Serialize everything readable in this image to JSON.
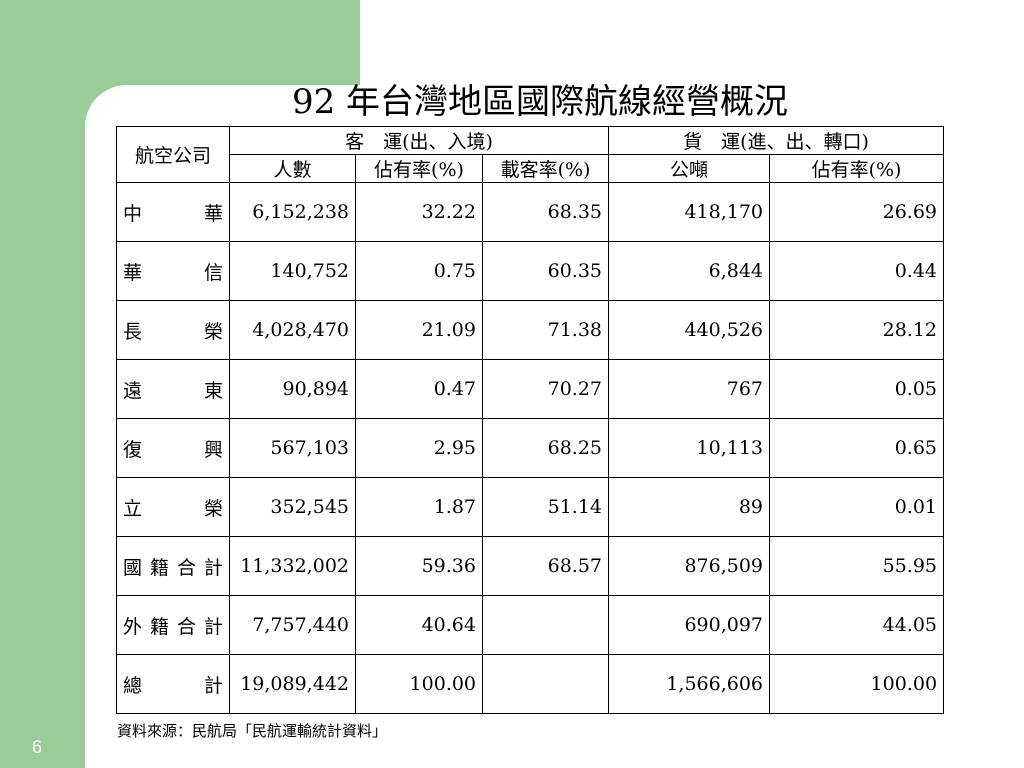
{
  "title": "92 年台灣地區國際航線經營概況",
  "table": {
    "airline_header": "航空公司",
    "passenger_group": "客　運(出、入境)",
    "cargo_group": "貨　運(進、出、轉口)",
    "subheaders": [
      "人數",
      "佔有率(%)",
      "載客率(%)",
      "公噸",
      "佔有率(%)"
    ],
    "rows": [
      {
        "airline": "中　華",
        "passengers": "6,152,238",
        "pax_share": "32.22",
        "load_factor": "68.35",
        "tons": "418,170",
        "cargo_share": "26.69"
      },
      {
        "airline": "華　信",
        "passengers": "140,752",
        "pax_share": "0.75",
        "load_factor": "60.35",
        "tons": "6,844",
        "cargo_share": "0.44"
      },
      {
        "airline": "長　榮",
        "passengers": "4,028,470",
        "pax_share": "21.09",
        "load_factor": "71.38",
        "tons": "440,526",
        "cargo_share": "28.12"
      },
      {
        "airline": "遠　東",
        "passengers": "90,894",
        "pax_share": "0.47",
        "load_factor": "70.27",
        "tons": "767",
        "cargo_share": "0.05"
      },
      {
        "airline": "復　興",
        "passengers": "567,103",
        "pax_share": "2.95",
        "load_factor": "68.25",
        "tons": "10,113",
        "cargo_share": "0.65"
      },
      {
        "airline": "立　榮",
        "passengers": "352,545",
        "pax_share": "1.87",
        "load_factor": "51.14",
        "tons": "89",
        "cargo_share": "0.01"
      },
      {
        "airline": "國籍合計",
        "passengers": "11,332,002",
        "pax_share": "59.36",
        "load_factor": "68.57",
        "tons": "876,509",
        "cargo_share": "55.95"
      },
      {
        "airline": "外籍合計",
        "passengers": "7,757,440",
        "pax_share": "40.64",
        "load_factor": "",
        "tons": "690,097",
        "cargo_share": "44.05"
      },
      {
        "airline": "總　計",
        "passengers": "19,089,442",
        "pax_share": "100.00",
        "load_factor": "",
        "tons": "1,566,606",
        "cargo_share": "100.00"
      }
    ]
  },
  "source": "資料來源：民航局「民航運輸統計資料」",
  "page_number": "6",
  "colors": {
    "accent_green": "#99cc99"
  }
}
